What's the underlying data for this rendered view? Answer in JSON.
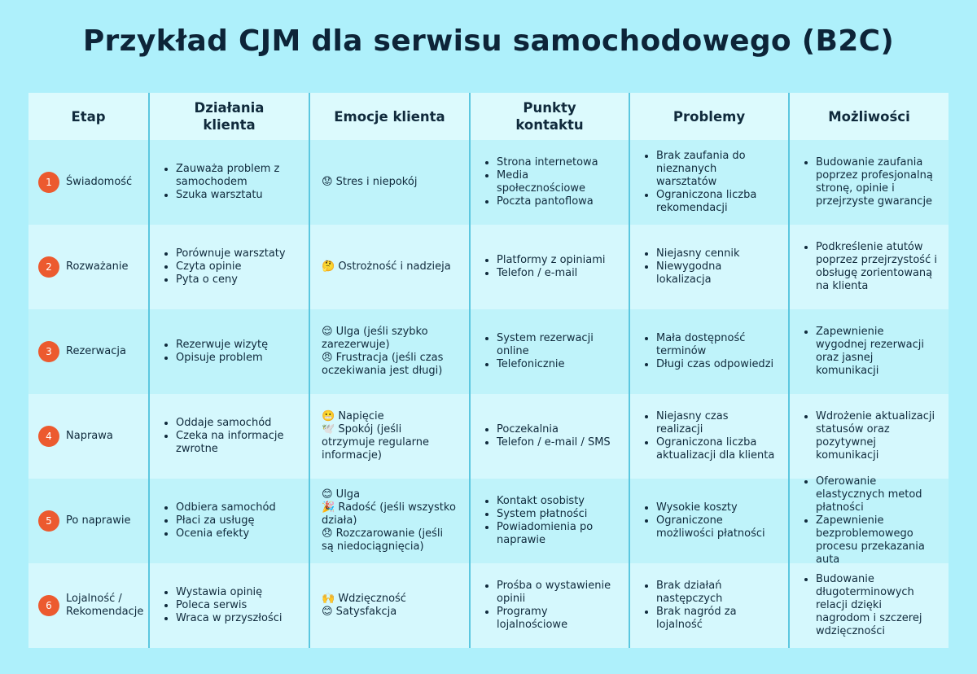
{
  "header": {
    "title": "Przykład CJM dla serwisu samochodowego (B2C)"
  },
  "table": {
    "columns": [
      "Etap",
      "Działania klienta",
      "Emocje klienta",
      "Punkty kontaktu",
      "Problemy",
      "Możliwości"
    ],
    "rows": [
      {
        "number": 1,
        "stage": "Świadomość",
        "actions": [
          "Zauważa problem z samochodem",
          "Szuka warsztatu"
        ],
        "emotions": [
          "😟 Stres i niepokój"
        ],
        "contacts": [
          "Strona internetowa",
          "Media społecznościowe",
          "Poczta pantoflowa"
        ],
        "problems": [
          "Brak zaufania do nieznanych warsztatów",
          "Ograniczona liczba rekomendacji"
        ],
        "opportunities": [
          "Budowanie zaufania poprzez profesjonalną stronę, opinie i przejrzyste gwarancje"
        ]
      },
      {
        "number": 2,
        "stage": "Rozważanie",
        "actions": [
          "Porównuje warsztaty",
          "Czyta opinie",
          "Pyta o ceny"
        ],
        "emotions": [
          "🤔 Ostrożność i nadzieja"
        ],
        "contacts": [
          "Platformy z opiniami",
          "Telefon / e-mail"
        ],
        "problems": [
          "Niejasny cennik",
          "Niewygodna lokalizacja"
        ],
        "opportunities": [
          "Podkreślenie atutów poprzez przejrzystość i obsługę zorientowaną na klienta"
        ]
      },
      {
        "number": 3,
        "stage": "Rezerwacja",
        "actions": [
          "Rezerwuje wizytę",
          "Opisuje problem"
        ],
        "emotions": [
          "😌 Ulga (jeśli szybko zarezerwuje)",
          "😠 Frustracja (jeśli czas oczekiwania jest długi)"
        ],
        "contacts": [
          "System rezerwacji online",
          "Telefonicznie"
        ],
        "problems": [
          "Mała dostępność terminów",
          "Długi czas odpowiedzi"
        ],
        "opportunities": [
          "Zapewnienie wygodnej rezerwacji oraz jasnej komunikacji"
        ]
      },
      {
        "number": 4,
        "stage": "Naprawa",
        "actions": [
          "Oddaje samochód",
          "Czeka na informacje zwrotne"
        ],
        "emotions": [
          "😬 Napięcie",
          "🕊️ Spokój (jeśli otrzymuje regularne informacje)"
        ],
        "contacts": [
          "Poczekalnia",
          "Telefon / e-mail / SMS"
        ],
        "problems": [
          "Niejasny czas realizacji",
          "Ograniczona liczba aktualizacji dla klienta"
        ],
        "opportunities": [
          "Wdrożenie aktualizacji statusów oraz pozytywnej komunikacji"
        ]
      },
      {
        "number": 5,
        "stage": "Po naprawie",
        "actions": [
          "Odbiera samochód",
          "Płaci za usługę",
          "Ocenia efekty"
        ],
        "emotions": [
          "😊 Ulga",
          "🎉 Radość (jeśli wszystko działa)",
          "😞 Rozczarowanie (jeśli są niedociągnięcia)"
        ],
        "contacts": [
          "Kontakt osobisty",
          "System płatności",
          "Powiadomienia po naprawie"
        ],
        "problems": [
          "Wysokie koszty",
          "Ograniczone możliwości płatności"
        ],
        "opportunities": [
          "Oferowanie elastycznych metod płatności",
          "Zapewnienie bezproblemowego procesu przekazania auta"
        ]
      },
      {
        "number": 6,
        "stage": "Lojalność / Rekomendacje",
        "actions": [
          "Wystawia opinię",
          "Poleca serwis",
          "Wraca w przyszłości"
        ],
        "emotions": [
          "🙌 Wdzięczność",
          "😊 Satysfakcja"
        ],
        "contacts": [
          "Prośba o wystawienie opinii",
          "Programy lojalnościowe"
        ],
        "problems": [
          "Brak działań następczych",
          "Brak nagród za lojalność"
        ],
        "opportunities": [
          "Budowanie długoterminowych relacji dzięki nagrodom i szczerej wdzięczności"
        ]
      }
    ]
  }
}
